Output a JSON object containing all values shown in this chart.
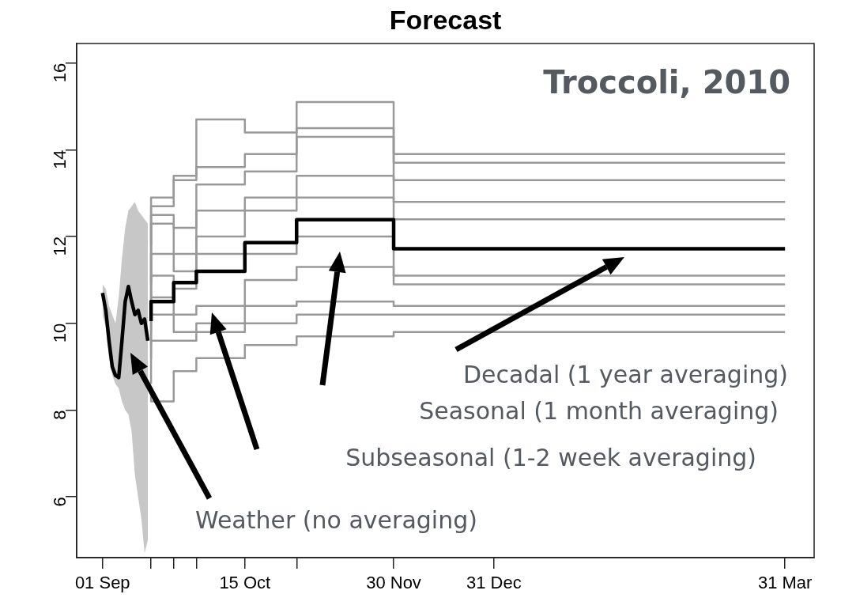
{
  "chart_data": {
    "type": "line",
    "title": "Forecast",
    "xlim": [
      "2009-08-24",
      "2010-04-09"
    ],
    "ylim": [
      4.6,
      16.45
    ],
    "xticks": [
      {
        "value": "2009-09-01",
        "label": "01 Sep"
      },
      {
        "value": "2009-09-16",
        "label": null
      },
      {
        "value": "2009-09-23",
        "label": null
      },
      {
        "value": "2009-09-30",
        "label": null
      },
      {
        "value": "2009-10-15",
        "label": "15 Oct"
      },
      {
        "value": "2009-10-31",
        "label": null
      },
      {
        "value": "2009-11-30",
        "label": "30 Nov"
      },
      {
        "value": "2009-12-31",
        "label": "31 Dec"
      },
      {
        "value": "2010-03-31",
        "label": "31 Mar"
      }
    ],
    "yticks": [
      6,
      8,
      10,
      12,
      14,
      16
    ],
    "grid": false,
    "legend": false,
    "marker": "none",
    "x": [
      "2009-09-16",
      "2009-09-23",
      "2009-09-30",
      "2009-10-15",
      "2009-10-31",
      "2009-11-30",
      "2009-12-31",
      "2010-03-31"
    ],
    "series": [
      {
        "type": "step",
        "color": "#999999",
        "values": [
          11.8,
          12.9,
          13.4,
          14.7,
          14.4,
          15.1,
          13.9,
          13.9
        ]
      },
      {
        "type": "step",
        "color": "#999999",
        "values": [
          11.0,
          12.7,
          13.3,
          13.6,
          13.9,
          14.5,
          13.7,
          13.7
        ]
      },
      {
        "type": "step",
        "color": "#999999",
        "values": [
          10.9,
          12.5,
          12.2,
          13.2,
          13.5,
          14.3,
          13.3,
          13.3
        ]
      },
      {
        "type": "step",
        "color": "#999999",
        "values": [
          10.6,
          12.3,
          11.6,
          12.6,
          12.9,
          13.4,
          12.8,
          12.8
        ]
      },
      {
        "type": "step",
        "color": "#999999",
        "values": [
          10.3,
          11.6,
          11.2,
          12.0,
          12.6,
          12.9,
          12.4,
          12.4
        ]
      },
      {
        "type": "step",
        "color": "#999999",
        "values": [
          9.8,
          11.1,
          10.8,
          11.6,
          11.6,
          12.0,
          11.1,
          11.1
        ]
      },
      {
        "type": "step",
        "color": "#999999",
        "values": [
          9.5,
          10.6,
          10.2,
          10.4,
          11.0,
          11.3,
          10.9,
          10.9
        ]
      },
      {
        "type": "step",
        "color": "#999999",
        "values": [
          9.2,
          10.2,
          9.8,
          10.0,
          10.4,
          10.5,
          10.4,
          10.4
        ]
      },
      {
        "type": "step",
        "color": "#999999",
        "values": [
          8.6,
          9.6,
          9.6,
          9.8,
          10.0,
          10.2,
          10.2,
          10.2
        ]
      },
      {
        "type": "step",
        "color": "#999999",
        "values": [
          8.4,
          8.2,
          8.9,
          9.2,
          9.5,
          9.7,
          9.8,
          9.8
        ]
      },
      {
        "color": "#000000",
        "x": [
          "2009-09-01",
          "2009-09-02",
          "2009-09-03",
          "2009-09-04",
          "2009-09-05",
          "2009-09-06",
          "2009-09-07",
          "2009-09-08",
          "2009-09-09",
          "2009-09-10",
          "2009-09-11",
          "2009-09-12",
          "2009-09-13",
          "2009-09-14",
          "2009-09-15"
        ],
        "values": [
          10.7,
          10.3,
          9.6,
          9.0,
          8.8,
          8.75,
          9.6,
          10.5,
          10.85,
          10.5,
          10.2,
          10.3,
          10.0,
          10.1,
          9.6
        ],
        "upper": [
          10.9,
          10.8,
          10.4,
          10.2,
          10.0,
          10.6,
          11.5,
          12.2,
          12.6,
          12.7,
          12.8,
          12.6,
          12.5,
          12.4,
          12.3
        ],
        "lower": [
          10.2,
          9.9,
          9.2,
          8.8,
          8.6,
          8.5,
          8.2,
          8.0,
          7.9,
          7.5,
          6.5,
          6.0,
          5.5,
          4.7,
          5.0
        ]
      },
      {
        "type": "step",
        "color": "#000000",
        "values": [
          10.05,
          10.5,
          10.94,
          11.2,
          11.86,
          12.39,
          11.72,
          11.72
        ]
      }
    ],
    "annotations": [
      "Troccoli, 2010",
      "Decadal (1 year averaging)",
      "Seasonal (1 month averaging)",
      "Subseasonal (1-2 week averaging)",
      "Weather (no averaging)"
    ]
  }
}
